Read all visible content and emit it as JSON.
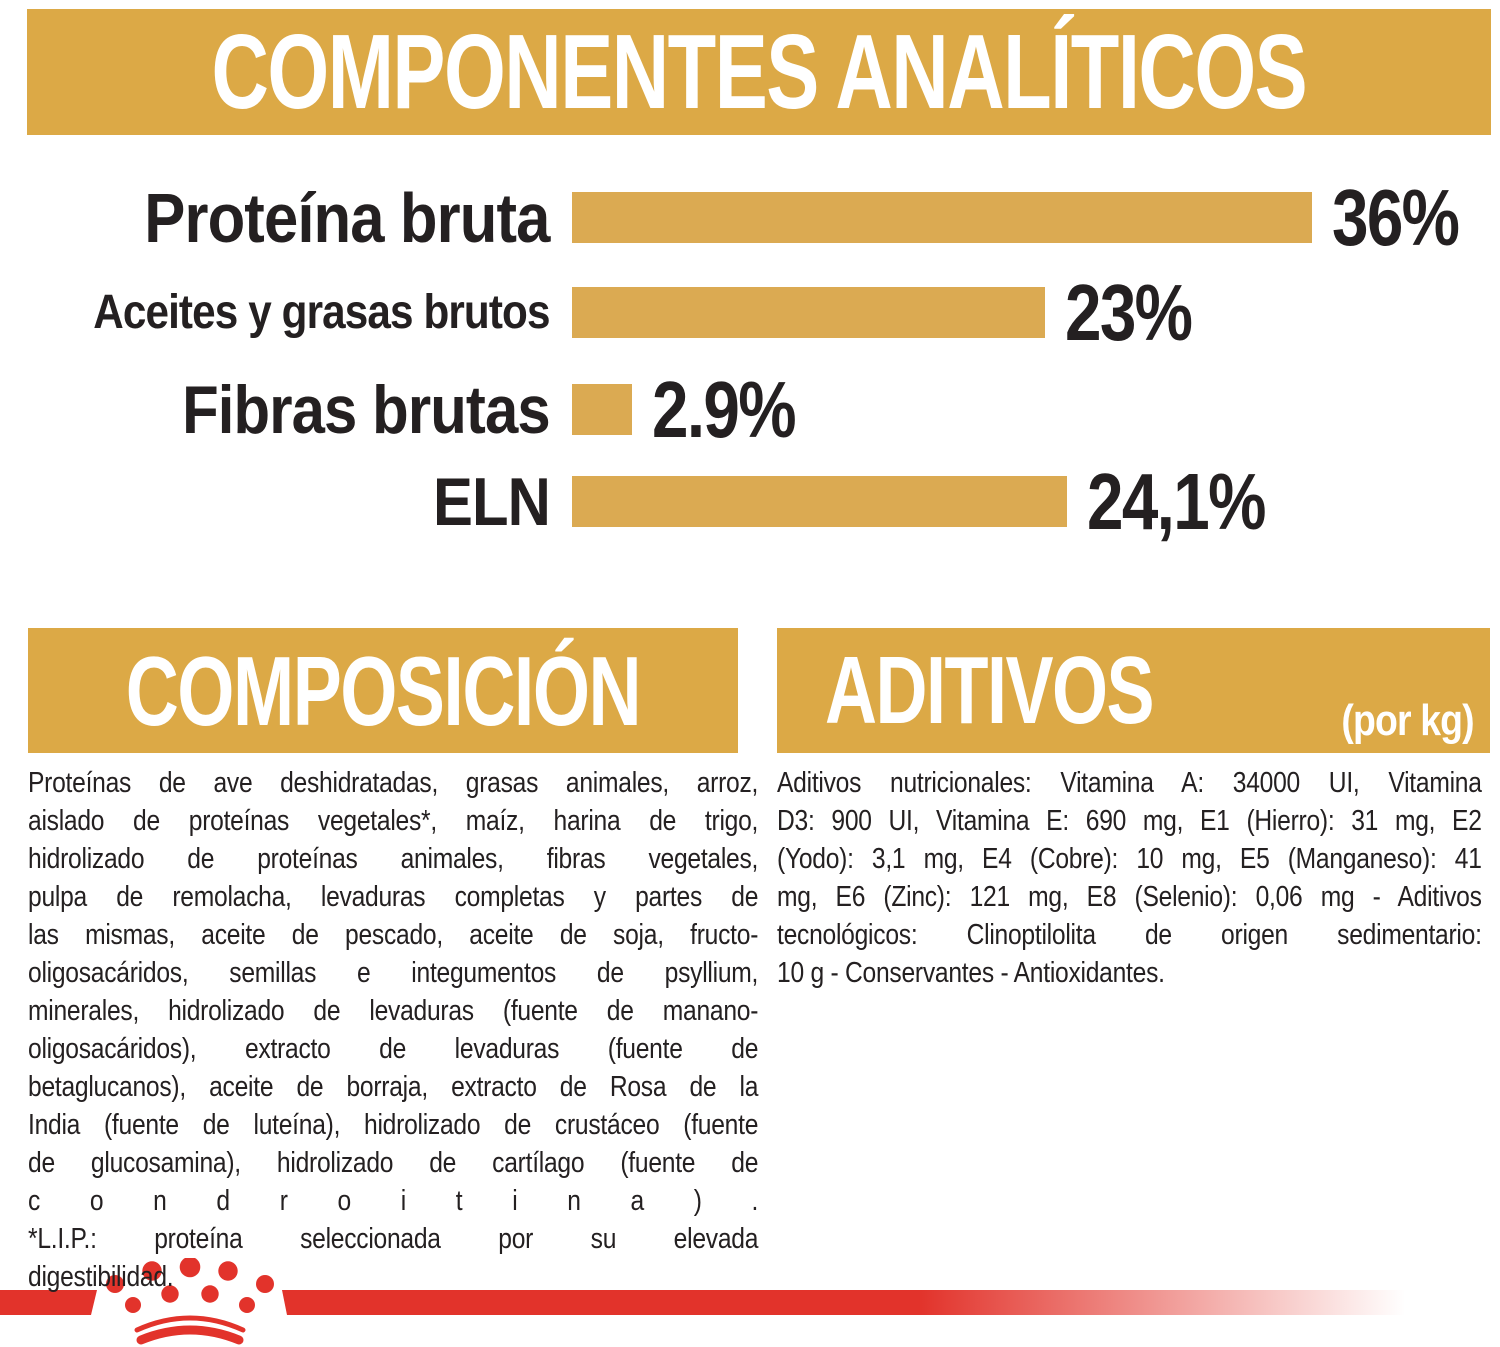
{
  "page": {
    "analytical_header": "COMPONENTES ANALÍTICOS",
    "composition": {
      "title": "COMPOSICIÓN",
      "lines": [
        "Proteínas de ave deshidratadas, grasas animales, arroz,",
        "aislado de proteínas vegetales*, maíz, harina de trigo,",
        "hidrolizado de proteínas animales, fibras vegetales,",
        "pulpa de remolacha, levaduras completas y partes de",
        "las mismas, aceite de pescado, aceite de soja, fructo-",
        "oligosacáridos, semillas e integumentos de psyllium,",
        "minerales, hidrolizado de levaduras (fuente de manano-",
        "oligosacáridos), extracto de levaduras (fuente de",
        "betaglucanos), aceite de borraja, extracto de Rosa de la",
        "India (fuente de luteína), hidrolizado de crustáceo (fuente",
        "de glucosamina), hidrolizado de cartílago (fuente de",
        "c o n d r o i t i n a ) .",
        "*L.I.P.: proteína seleccionada por su elevada",
        "digestibilidad."
      ]
    },
    "additives": {
      "title": "ADITIVOS",
      "unit_note": "(por kg)",
      "lines": [
        "Aditivos nutricionales: Vitamina A: 34000 UI, Vitamina",
        "D3: 900 UI, Vitamina E: 690 mg, E1 (Hierro): 31 mg, E2",
        "(Yodo): 3,1 mg, E4 (Cobre): 10 mg, E5 (Manganeso): 41",
        "mg, E6 (Zinc): 121 mg, E8 (Selenio): 0,06 mg - Aditivos",
        "tecnológicos: Clinoptilolita de origen sedimentario:",
        "10 g - Conservantes - Antioxidantes."
      ]
    },
    "footer": {
      "logo": "royal-canin-crown"
    }
  },
  "chart_data": {
    "type": "bar",
    "orientation": "horizontal",
    "title": "COMPONENTES ANALÍTICOS",
    "categories": [
      "Proteína bruta",
      "Aceites y grasas brutos",
      "Fibras brutas",
      "ELN"
    ],
    "values": [
      36,
      23,
      2.9,
      24.1
    ],
    "value_labels": [
      "36%",
      "23%",
      "2.9%",
      "24,1%"
    ],
    "xlabel": "",
    "ylabel": "",
    "xlim": [
      0,
      36.5
    ],
    "grid": false,
    "legend": "none",
    "bar_color": "#DBAA52"
  },
  "colors": {
    "gold_banner": "#DCA946",
    "gold_bar": "#DBAA52",
    "text_dark": "#242021",
    "brand_red": "#E2332B",
    "background": "#FFFFFF"
  }
}
